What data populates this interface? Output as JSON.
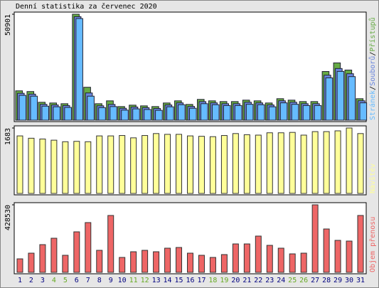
{
  "chart_data": [
    {
      "type": "bar3",
      "title": "Denní statistika za červenec 2020",
      "legend_separator": "/",
      "ylim": [
        0,
        50901
      ],
      "yticks": [
        50901
      ],
      "series": [
        {
          "name": "Přístupů",
          "color": "#66aa44",
          "values": [
            14100,
            13760,
            8600,
            8260,
            7910,
            50901,
            15820,
            7910,
            9290,
            6540,
            7220,
            6880,
            6540,
            8260,
            9290,
            7570,
            9980,
            9290,
            8940,
            8940,
            9630,
            9290,
            8260,
            10320,
            9630,
            8940,
            8940,
            23390,
            27520,
            24080,
            10320
          ]
        },
        {
          "name": "Souborů",
          "color": "#6a86dd",
          "values": [
            13600,
            13200,
            8300,
            8000,
            7700,
            50400,
            13760,
            7600,
            8260,
            6400,
            7000,
            6700,
            6300,
            8000,
            9000,
            7300,
            9600,
            9000,
            8600,
            8600,
            9300,
            9000,
            8000,
            10000,
            9300,
            8600,
            8600,
            22300,
            25500,
            23000,
            10000
          ]
        },
        {
          "name": "Stránek",
          "color": "#66bbff",
          "values": [
            13300,
            12900,
            8100,
            7800,
            7500,
            50200,
            12900,
            7400,
            7900,
            6200,
            6800,
            6500,
            6100,
            7800,
            8800,
            7100,
            9300,
            8800,
            8400,
            8400,
            9000,
            8800,
            7800,
            9700,
            9000,
            8400,
            8400,
            21700,
            24800,
            22300,
            9700
          ]
        }
      ]
    },
    {
      "type": "bar",
      "ylim": [
        0,
        1683
      ],
      "yticks": [
        1683
      ],
      "series": [
        {
          "name": "Návštěv",
          "color": "#ffff99",
          "values": [
            1480,
            1420,
            1400,
            1370,
            1330,
            1340,
            1330,
            1480,
            1480,
            1490,
            1430,
            1490,
            1540,
            1520,
            1520,
            1480,
            1470,
            1460,
            1490,
            1540,
            1510,
            1500,
            1560,
            1560,
            1570,
            1500,
            1590,
            1590,
            1610,
            1683,
            1540
          ]
        }
      ]
    },
    {
      "type": "bar",
      "ylim": [
        0,
        428530
      ],
      "yticks": [
        428530
      ],
      "categories": [
        "1",
        "2",
        "3",
        "4",
        "5",
        "6",
        "7",
        "8",
        "9",
        "10",
        "11",
        "12",
        "13",
        "14",
        "15",
        "16",
        "17",
        "18",
        "19",
        "20",
        "21",
        "22",
        "23",
        "24",
        "25",
        "26",
        "27",
        "28",
        "29",
        "30",
        "31"
      ],
      "category_colors": [
        "#000080",
        "#000080",
        "#000080",
        "#66aa22",
        "#66aa22",
        "#000080",
        "#000080",
        "#000080",
        "#000080",
        "#000080",
        "#66aa22",
        "#66aa22",
        "#000080",
        "#000080",
        "#000080",
        "#000080",
        "#000080",
        "#66aa22",
        "#66aa22",
        "#000080",
        "#000080",
        "#000080",
        "#000080",
        "#000080",
        "#66aa22",
        "#66aa22",
        "#000080",
        "#000080",
        "#000080",
        "#000080",
        "#000080"
      ],
      "series": [
        {
          "name": "Objem přenosu",
          "color": "#ee6666",
          "values": [
            85700,
            121800,
            175900,
            216500,
            108300,
            257100,
            315800,
            139800,
            360900,
            94700,
            130800,
            139800,
            130800,
            153400,
            157900,
            121800,
            108300,
            94700,
            112800,
            180400,
            180400,
            230100,
            171400,
            153400,
            117300,
            121800,
            428530,
            275200,
            203000,
            198500,
            360900
          ]
        }
      ]
    }
  ]
}
